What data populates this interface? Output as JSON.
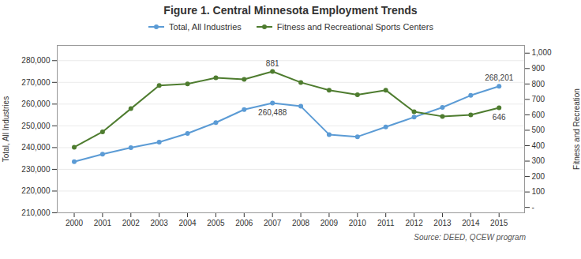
{
  "chart_data": {
    "type": "line",
    "title": "Figure 1. Central Minnesota Employment Trends",
    "x": [
      2000,
      2001,
      2002,
      2003,
      2004,
      2005,
      2006,
      2007,
      2008,
      2009,
      2010,
      2011,
      2012,
      2013,
      2014,
      2015
    ],
    "xlim": [
      1999.4,
      2015.9
    ],
    "xticks": [
      2000,
      2001,
      2002,
      2003,
      2004,
      2005,
      2006,
      2007,
      2008,
      2009,
      2010,
      2011,
      2012,
      2013,
      2014,
      2015
    ],
    "ylabel": "Total, All Industries",
    "y2label": "Fitness and Recreation",
    "ylim": [
      210000,
      287000
    ],
    "yticks": [
      {
        "value": 210000,
        "label": "210,000"
      },
      {
        "value": 220000,
        "label": "220,000"
      },
      {
        "value": 230000,
        "label": "230,000"
      },
      {
        "value": 240000,
        "label": "240,000"
      },
      {
        "value": 250000,
        "label": "250,000"
      },
      {
        "value": 260000,
        "label": "260,000"
      },
      {
        "value": 270000,
        "label": "270,000"
      },
      {
        "value": 280000,
        "label": "280,000"
      }
    ],
    "y2lim": [
      -35,
      1050
    ],
    "y2ticks": [
      {
        "value": 0,
        "label": "-"
      },
      100,
      200,
      300,
      400,
      500,
      600,
      700,
      800,
      900,
      {
        "value": 1000,
        "label": "1,000"
      }
    ],
    "grid": true,
    "legend": "top",
    "marker": "circle",
    "series": [
      {
        "name": "Total, All Industries",
        "color": "#5B9BD5",
        "values": [
          233500,
          237000,
          240000,
          242500,
          246500,
          251500,
          257500,
          260488,
          259000,
          246000,
          245000,
          249500,
          254000,
          258500,
          264000,
          268201
        ]
      },
      {
        "name": "Fitness and Recreational Sports Centers",
        "color": "#4E7C2F",
        "axis": "y2",
        "values": [
          390,
          490,
          640,
          790,
          800,
          840,
          830,
          881,
          810,
          760,
          730,
          760,
          620,
          590,
          600,
          646
        ]
      }
    ],
    "annotations": [
      {
        "text": "881",
        "x": 2007,
        "y": 881,
        "axis": "y2"
      },
      {
        "text": "260,488",
        "x": 2007,
        "y": 260488
      },
      {
        "text": "268,201",
        "x": 2015,
        "y": 268201
      },
      {
        "text": "646",
        "x": 2015,
        "y": 646,
        "axis": "y2"
      }
    ],
    "source": "Source: DEED, QCEW program"
  }
}
